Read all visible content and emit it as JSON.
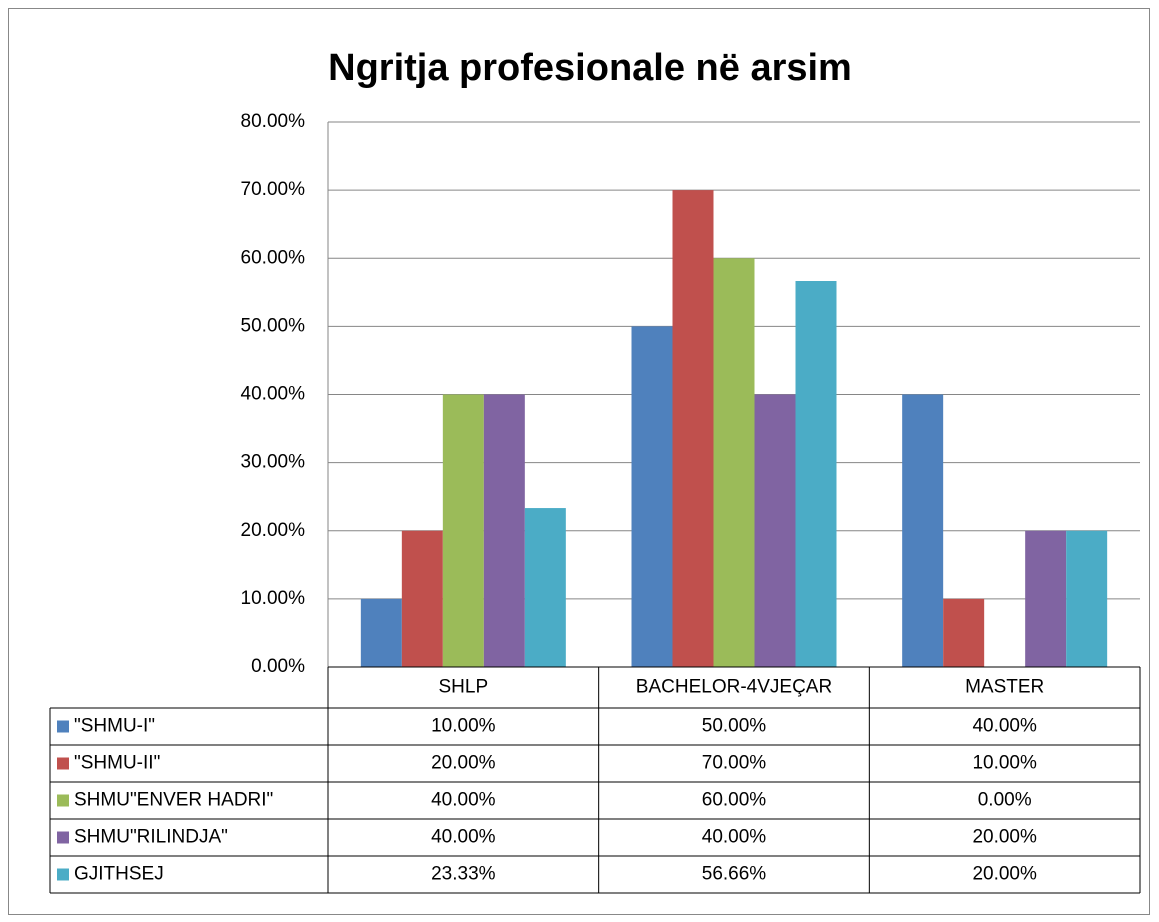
{
  "chart_data": {
    "type": "bar",
    "title": "Ngritja profesionale në arsim",
    "categories": [
      "SHLP",
      "BACHELOR-4VJEÇAR",
      "MASTER"
    ],
    "series": [
      {
        "name": "\"SHMU-I\"",
        "color": "#4f81bd",
        "values": [
          10,
          50,
          40
        ],
        "value_labels": [
          "10.00%",
          "50.00%",
          "40.00%"
        ]
      },
      {
        "name": "\"SHMU-II\"",
        "color": "#c0504d",
        "values": [
          20,
          70,
          10
        ],
        "value_labels": [
          "20.00%",
          "70.00%",
          "10.00%"
        ]
      },
      {
        "name": "SHMU\"ENVER HADRI\"",
        "color": "#9bbb59",
        "values": [
          40,
          60,
          0
        ],
        "value_labels": [
          "40.00%",
          "60.00%",
          "0.00%"
        ]
      },
      {
        "name": "SHMU\"RILINDJA\"",
        "color": "#8064a2",
        "values": [
          40,
          40,
          20
        ],
        "value_labels": [
          "40.00%",
          "40.00%",
          "20.00%"
        ]
      },
      {
        "name": "GJITHSEJ",
        "color": "#4bacc6",
        "values": [
          23.33,
          56.66,
          20
        ],
        "value_labels": [
          "23.33%",
          "56.66%",
          "20.00%"
        ]
      }
    ],
    "ylim": [
      0,
      80
    ],
    "yticks": [
      {
        "value": 0,
        "label": "0.00%"
      },
      {
        "value": 10,
        "label": "10.00%"
      },
      {
        "value": 20,
        "label": "20.00%"
      },
      {
        "value": 30,
        "label": "30.00%"
      },
      {
        "value": 40,
        "label": "40.00%"
      },
      {
        "value": 50,
        "label": "50.00%"
      },
      {
        "value": 60,
        "label": "60.00%"
      },
      {
        "value": 70,
        "label": "70.00%"
      },
      {
        "value": 80,
        "label": "80.00%"
      }
    ],
    "grid": true,
    "legend": "table"
  }
}
